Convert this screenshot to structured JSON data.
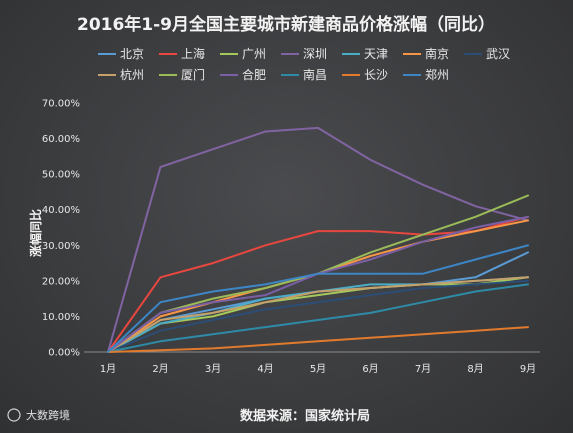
{
  "chart_data": {
    "type": "line",
    "title": "2016年1-9月全国主要城市新建商品价格涨幅（同比）",
    "ylabel": "涨幅同比",
    "source": "数据来源：国家统计局",
    "categories": [
      "1月",
      "2月",
      "3月",
      "4月",
      "5月",
      "6月",
      "7月",
      "8月",
      "9月"
    ],
    "y_ticks": [
      "0.00%",
      "10.00%",
      "20.00%",
      "30.00%",
      "40.00%",
      "50.00%",
      "60.00%",
      "70.00%"
    ],
    "ylim": [
      0,
      70
    ],
    "grid": false,
    "legend_position": "top",
    "series": [
      {
        "name": "北京",
        "color": "#5b9bd5",
        "values": [
          0,
          9,
          12,
          15,
          17,
          18,
          19,
          21,
          28
        ]
      },
      {
        "name": "上海",
        "color": "#e8473f",
        "values": [
          0,
          21,
          25,
          30,
          34,
          34,
          33,
          34,
          38
        ]
      },
      {
        "name": "广州",
        "color": "#a5c85a",
        "values": [
          0,
          8,
          10,
          14,
          16,
          18,
          19,
          19,
          21
        ]
      },
      {
        "name": "深圳",
        "color": "#8064a2",
        "values": [
          0,
          52,
          57,
          62,
          63,
          54,
          47,
          41,
          37
        ]
      },
      {
        "name": "天津",
        "color": "#4bacc6",
        "values": [
          0,
          8,
          11,
          15,
          17,
          19,
          19,
          20,
          21
        ]
      },
      {
        "name": "南京",
        "color": "#f79646",
        "values": [
          0,
          10,
          14,
          18,
          22,
          27,
          31,
          34,
          37
        ]
      },
      {
        "name": "武汉",
        "color": "#2c4d75",
        "values": [
          0,
          6,
          9,
          12,
          14,
          16,
          18,
          19,
          20
        ]
      },
      {
        "name": "杭州",
        "color": "#c6a06a",
        "values": [
          0,
          9,
          11,
          14,
          17,
          18,
          19,
          20,
          21
        ]
      },
      {
        "name": "厦门",
        "color": "#9bbb59",
        "values": [
          0,
          11,
          15,
          18,
          22,
          28,
          33,
          38,
          44
        ]
      },
      {
        "name": "合肥",
        "color": "#7b5fa5",
        "values": [
          0,
          11,
          14,
          16,
          22,
          26,
          31,
          35,
          38
        ]
      },
      {
        "name": "南昌",
        "color": "#2e8ba8",
        "values": [
          0,
          3,
          5,
          7,
          9,
          11,
          14,
          17,
          19
        ]
      },
      {
        "name": "长沙",
        "color": "#e07b2e",
        "values": [
          0,
          0.5,
          1,
          2,
          3,
          4,
          5,
          6,
          7
        ]
      },
      {
        "name": "郑州",
        "color": "#3d86c6",
        "values": [
          0,
          14,
          17,
          19,
          22,
          22,
          22,
          26,
          30
        ]
      }
    ]
  },
  "watermark": {
    "brand": "大数跨境"
  }
}
